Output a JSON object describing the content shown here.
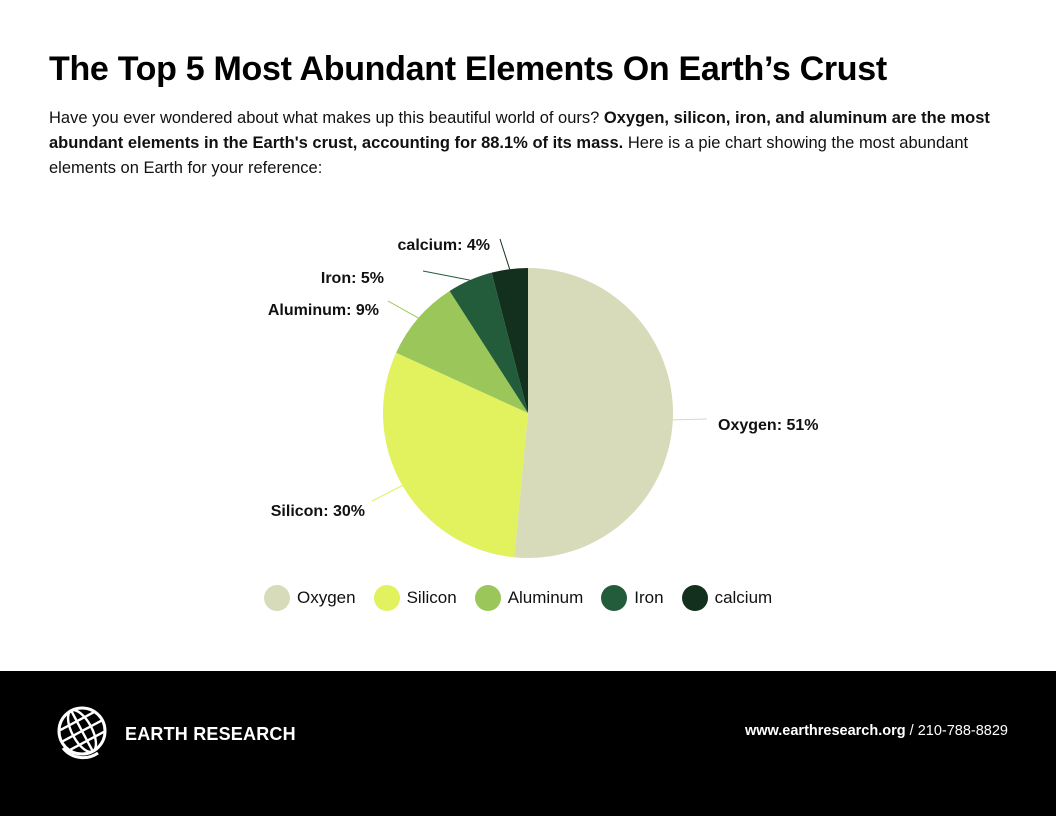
{
  "header": {
    "title": "The Top 5 Most Abundant Elements On Earth’s Crust",
    "intro_start": "Have you ever wondered about what makes up this beautiful world of ours? ",
    "intro_bold": "Oxygen, silicon, iron, and aluminum are the most abundant elements in the Earth's crust, accounting for 88.1% of its mass.",
    "intro_end": " Here is a pie chart showing the most abundant elements on Earth for your reference:"
  },
  "chart_data": {
    "type": "pie",
    "categories": [
      "Oxygen",
      "Silicon",
      "Aluminum",
      "Iron",
      "calcium"
    ],
    "values": [
      51,
      30,
      9,
      5,
      4
    ],
    "slice_labels": [
      "Oxygen: 51%",
      "Silicon: 30%",
      "Aluminum: 9%",
      "Iron: 5%",
      "calcium: 4%"
    ],
    "colors": [
      "#d7dbba",
      "#e1f25e",
      "#9bc75a",
      "#235c3a",
      "#13301f"
    ],
    "legend_position": "bottom"
  },
  "footer": {
    "brand": "EARTH RESEARCH",
    "website": "www.earthresearch.org",
    "phone": " / 210-788-8829",
    "logo_icon": "globe-icon"
  }
}
